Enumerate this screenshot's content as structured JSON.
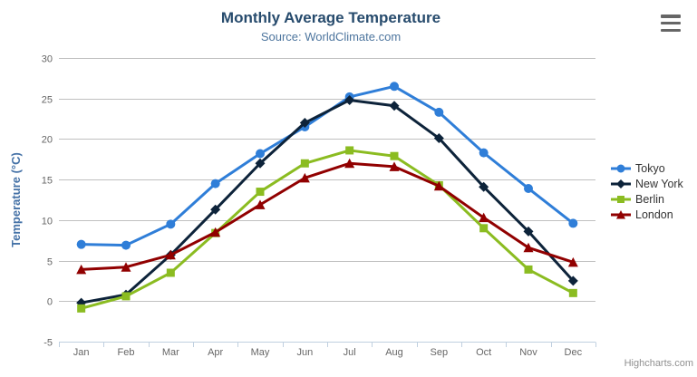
{
  "chart_data": {
    "type": "line",
    "title": "Monthly Average Temperature",
    "subtitle": "Source: WorldClimate.com",
    "xlabel": "",
    "ylabel": "Temperature (°C)",
    "categories": [
      "Jan",
      "Feb",
      "Mar",
      "Apr",
      "May",
      "Jun",
      "Jul",
      "Aug",
      "Sep",
      "Oct",
      "Nov",
      "Dec"
    ],
    "ylim": [
      -5,
      30
    ],
    "yticks": [
      -5,
      0,
      5,
      10,
      15,
      20,
      25,
      30
    ],
    "grid": true,
    "legend_position": "right",
    "series": [
      {
        "name": "Tokyo",
        "color": "#2f7ed8",
        "marker": "circle",
        "values": [
          7.0,
          6.9,
          9.5,
          14.5,
          18.2,
          21.5,
          25.2,
          26.5,
          23.3,
          18.3,
          13.9,
          9.6
        ]
      },
      {
        "name": "New York",
        "color": "#0d233a",
        "marker": "diamond",
        "values": [
          -0.2,
          0.8,
          5.7,
          11.3,
          17.0,
          22.0,
          24.8,
          24.1,
          20.1,
          14.1,
          8.6,
          2.5
        ]
      },
      {
        "name": "Berlin",
        "color": "#8bbc21",
        "marker": "square",
        "values": [
          -0.9,
          0.6,
          3.5,
          8.4,
          13.5,
          17.0,
          18.6,
          17.9,
          14.3,
          9.0,
          3.9,
          1.0
        ]
      },
      {
        "name": "London",
        "color": "#910000",
        "marker": "triangle",
        "values": [
          3.9,
          4.2,
          5.7,
          8.5,
          11.9,
          15.2,
          17.0,
          16.6,
          14.2,
          10.3,
          6.6,
          4.8
        ]
      }
    ]
  },
  "colors": {
    "title": "#274b6d",
    "subtitle": "#4d759e",
    "axis_title": "#4572a7",
    "axis_labels": "#666666",
    "grid_line": "#c0c0c0",
    "axis_line": "#c0d0e0",
    "legend_text": "#333333",
    "credits": "#909090",
    "menu_icon": "#666666",
    "background": "#ffffff"
  },
  "export_menu": {
    "icon": "hamburger-icon"
  },
  "credits": {
    "label": "Highcharts.com"
  }
}
